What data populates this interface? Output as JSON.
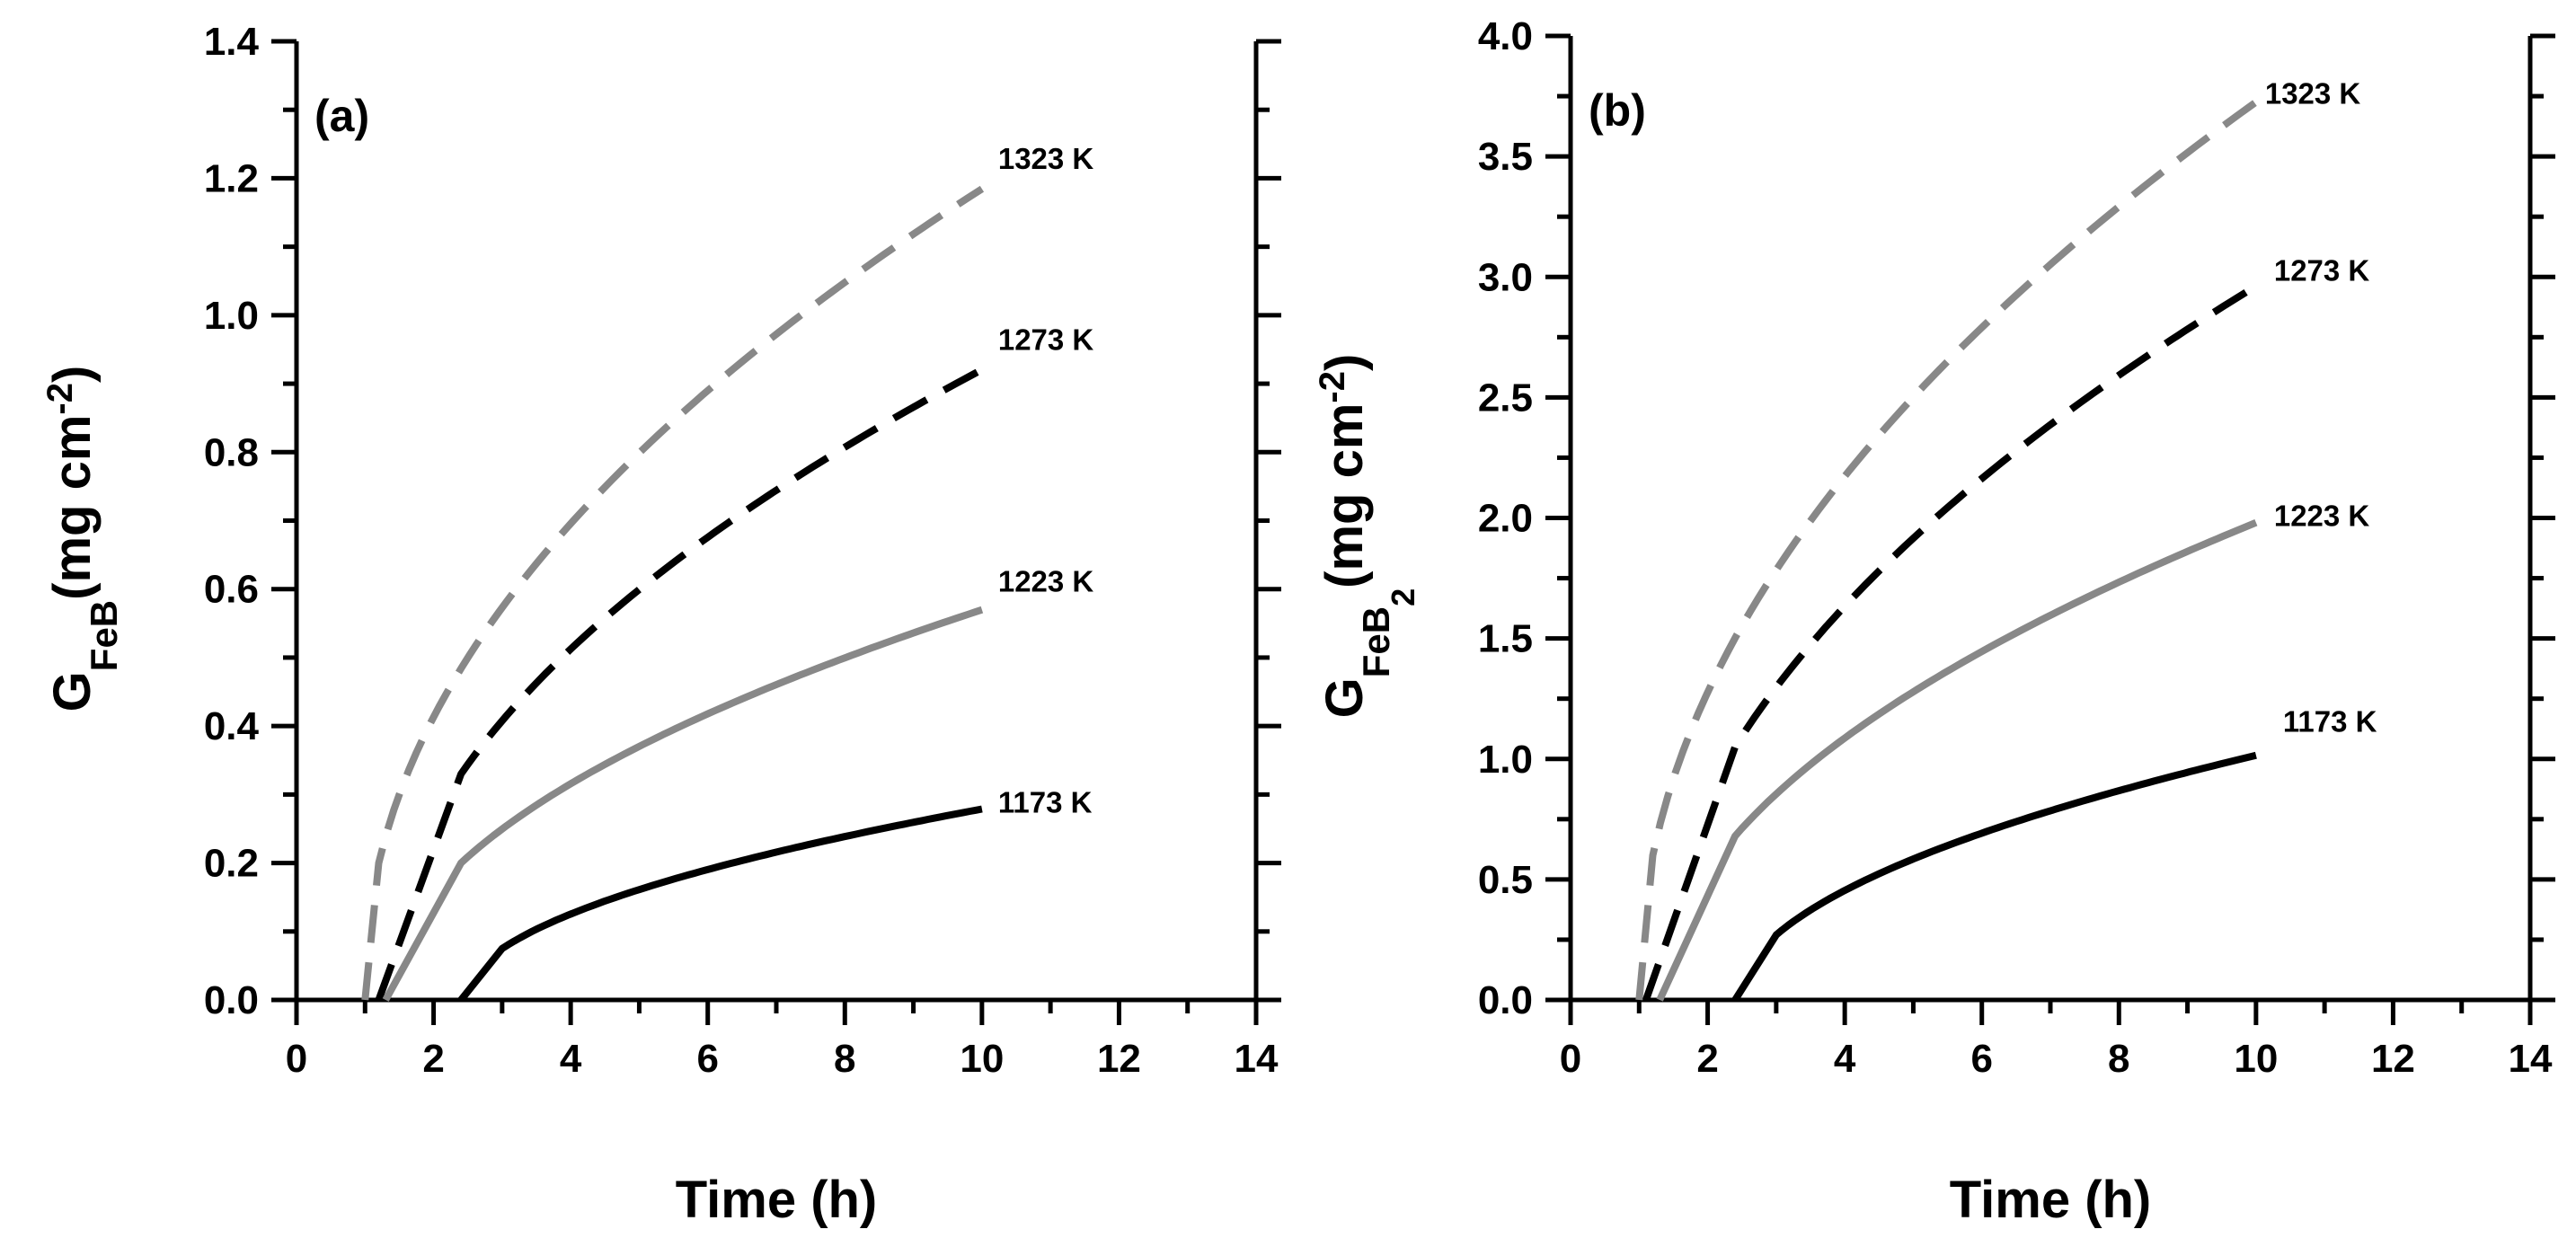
{
  "chart_data": [
    {
      "type": "line",
      "panel_label": "(a)",
      "xlabel": "Time (h)",
      "ylabel_main": "G",
      "ylabel_sub": "FeB",
      "ylabel_unit": "(mg cm",
      "ylabel_exp": "-2",
      "ylabel_close": ")",
      "xlim": [
        0,
        14
      ],
      "ylim": [
        0,
        1.4
      ],
      "x_ticks": [
        0,
        2,
        4,
        6,
        8,
        10,
        12,
        14
      ],
      "y_ticks": [
        0.0,
        0.2,
        0.4,
        0.6,
        0.8,
        1.0,
        1.2,
        1.4
      ],
      "x_tick_labels": [
        "0",
        "2",
        "4",
        "6",
        "8",
        "10",
        "12",
        "14"
      ],
      "y_tick_labels": [
        "0.0",
        "0.2",
        "0.4",
        "0.6",
        "0.8",
        "1.0",
        "1.2",
        "1.4"
      ],
      "series": [
        {
          "name": "1323 K",
          "style": "dashed",
          "color": "#888888",
          "t0": 1.0,
          "tk": 1.2,
          "yk": 0.2,
          "k": 0.3857,
          "t_end": 10.0
        },
        {
          "name": "1273 K",
          "style": "dashed",
          "color": "#000000",
          "t0": 1.2,
          "tk": 2.4,
          "yk": 0.33,
          "k": 0.3156,
          "t_end": 10.0
        },
        {
          "name": "1223 K",
          "style": "solid",
          "color": "#888888",
          "t0": 1.3,
          "tk": 2.4,
          "yk": 0.2,
          "k": 0.1946,
          "t_end": 10.0
        },
        {
          "name": "1173 K",
          "style": "solid",
          "color": "#000000",
          "t0": 2.4,
          "tk": 3.0,
          "yk": 0.075,
          "k": 0.1028,
          "t_end": 10.0
        }
      ]
    },
    {
      "type": "line",
      "panel_label": "(b)",
      "xlabel": "Time (h)",
      "ylabel_main": "G",
      "ylabel_sub": "FeB",
      "ylabel_sub2": "2",
      "ylabel_unit": "(mg cm",
      "ylabel_exp": "-2",
      "ylabel_close": ")",
      "xlim": [
        0,
        14
      ],
      "ylim": [
        0,
        4.0
      ],
      "x_ticks": [
        0,
        2,
        4,
        6,
        8,
        10,
        12,
        14
      ],
      "y_ticks": [
        0.0,
        0.5,
        1.0,
        1.5,
        2.0,
        2.5,
        3.0,
        3.5,
        4.0
      ],
      "x_tick_labels": [
        "0",
        "2",
        "4",
        "6",
        "8",
        "10",
        "12",
        "14"
      ],
      "y_tick_labels": [
        "0.0",
        "0.5",
        "1.0",
        "1.5",
        "2.0",
        "2.5",
        "3.0",
        "3.5",
        "4.0"
      ],
      "series": [
        {
          "name": "1323 K",
          "style": "dashed",
          "color": "#888888",
          "t0": 1.0,
          "tk": 1.2,
          "yk": 0.6,
          "k": 1.2244,
          "t_end": 10.0
        },
        {
          "name": "1273 K",
          "style": "dashed",
          "color": "#000000",
          "t0": 1.1,
          "tk": 2.4,
          "yk": 1.05,
          "k": 1.0373,
          "t_end": 10.0
        },
        {
          "name": "1223 K",
          "style": "solid",
          "color": "#888888",
          "t0": 1.3,
          "tk": 2.4,
          "yk": 0.68,
          "k": 0.6842,
          "t_end": 10.0
        },
        {
          "name": "1173 K",
          "style": "solid",
          "color": "#000000",
          "t0": 2.4,
          "tk": 3.0,
          "yk": 0.27,
          "k": 0.3758,
          "t_end": 10.0
        }
      ]
    }
  ]
}
